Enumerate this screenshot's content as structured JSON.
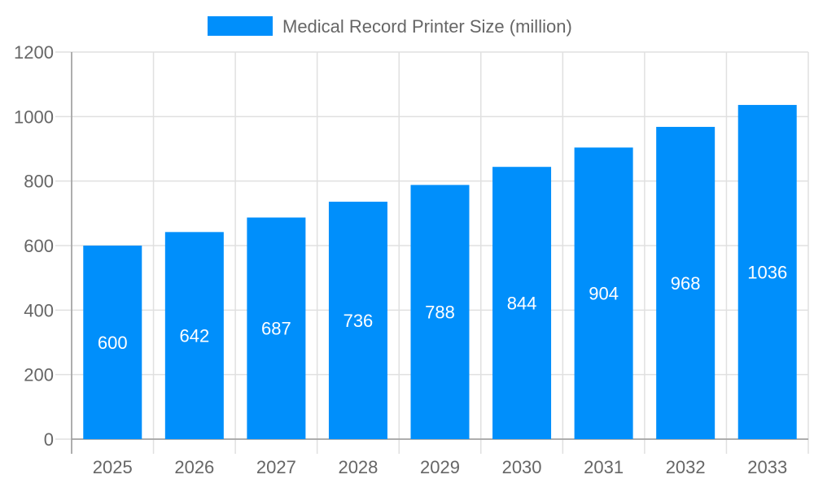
{
  "chart_data": {
    "type": "bar",
    "title": "",
    "xlabel": "",
    "ylabel": "",
    "categories": [
      "2025",
      "2026",
      "2027",
      "2028",
      "2029",
      "2030",
      "2031",
      "2032",
      "2033"
    ],
    "series": [
      {
        "name": "Medical Record Printer Size (million)",
        "values": [
          600,
          642,
          687,
          736,
          788,
          844,
          904,
          968,
          1036
        ]
      }
    ],
    "ylim": [
      0,
      1200
    ],
    "yticks": [
      0,
      200,
      400,
      600,
      800,
      1000,
      1200
    ],
    "grid": true,
    "legend": "top-center",
    "data_labels": true,
    "colors": {
      "bar": "#008ffb",
      "grid": "#e0e0e0",
      "axis": "#999999",
      "text": "#666666",
      "label": "#ffffff"
    }
  }
}
